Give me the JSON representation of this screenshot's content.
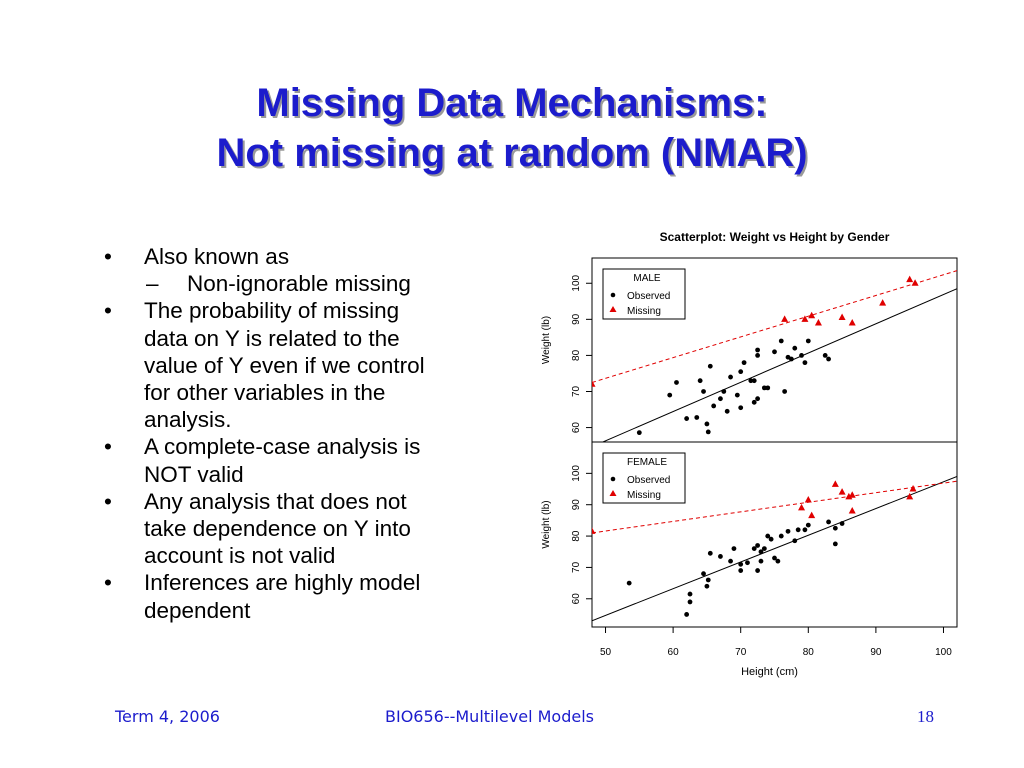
{
  "slide": {
    "title_line1": "Missing Data Mechanisms:",
    "title_line2": "Not missing at random (NMAR)",
    "bullets": [
      {
        "lines": [
          "Also known as"
        ],
        "subs": [
          "Non-ignorable missing"
        ]
      },
      {
        "lines": [
          "The probability of missing",
          "data on Y is related to the",
          "value of Y even if we control",
          "for other variables in the",
          "analysis."
        ],
        "subs": []
      },
      {
        "lines": [
          "A complete-case analysis is",
          "NOT valid"
        ],
        "subs": []
      },
      {
        "lines": [
          "Any analysis that does not",
          "take dependence on Y into",
          "account is not valid"
        ],
        "subs": []
      },
      {
        "lines": [
          "Inferences are highly model",
          "dependent"
        ],
        "subs": []
      }
    ],
    "bullet_marker": "•",
    "sub_marker": "–"
  },
  "footer": {
    "left": "Term 4, 2006",
    "center": "BIO656--Multilevel Models",
    "page": "18"
  },
  "colors": {
    "title": "#1c1ccc",
    "observed": "#000000",
    "missing": "#e00000"
  },
  "chart_data": {
    "type": "scatter",
    "title": "Scatterplot: Weight vs Height by Gender",
    "xlabel": "Height (cm)",
    "xlim": [
      48,
      102
    ],
    "xticks": [
      50,
      60,
      70,
      80,
      90,
      100
    ],
    "panels": [
      {
        "legend_title": "MALE",
        "ylabel": "Weight (lb)",
        "ylim": [
          56,
          107
        ],
        "yticks": [
          60,
          70,
          80,
          90,
          100
        ],
        "observed": [
          [
            55.0,
            58.6
          ],
          [
            59.5,
            69.0
          ],
          [
            60.5,
            72.5
          ],
          [
            62.0,
            62.5
          ],
          [
            63.5,
            62.8
          ],
          [
            64.0,
            73.0
          ],
          [
            64.5,
            70.0
          ],
          [
            65.0,
            61.0
          ],
          [
            65.2,
            58.8
          ],
          [
            65.5,
            77.0
          ],
          [
            66.0,
            66.0
          ],
          [
            67.0,
            68.0
          ],
          [
            67.5,
            70.0
          ],
          [
            68.0,
            64.5
          ],
          [
            68.5,
            74.0
          ],
          [
            69.5,
            69.0
          ],
          [
            70.0,
            65.5
          ],
          [
            70.0,
            75.5
          ],
          [
            70.5,
            78.0
          ],
          [
            71.5,
            73.0
          ],
          [
            72.0,
            73.0
          ],
          [
            72.0,
            67.0
          ],
          [
            72.5,
            68.0
          ],
          [
            72.5,
            80.0
          ],
          [
            72.5,
            81.5
          ],
          [
            73.5,
            71.0
          ],
          [
            74.0,
            71.0
          ],
          [
            75.0,
            81.0
          ],
          [
            76.0,
            84.0
          ],
          [
            76.5,
            70.0
          ],
          [
            77.0,
            79.5
          ],
          [
            77.5,
            79.0
          ],
          [
            78.0,
            82.0
          ],
          [
            79.0,
            80.0
          ],
          [
            79.5,
            78.0
          ],
          [
            80.0,
            84.0
          ],
          [
            82.5,
            80.0
          ],
          [
            83.0,
            79.0
          ]
        ],
        "missing": [
          [
            48.0,
            72.0
          ],
          [
            76.5,
            90.0
          ],
          [
            79.5,
            90.0
          ],
          [
            80.5,
            91.0
          ],
          [
            81.5,
            89.0
          ],
          [
            85.0,
            90.5
          ],
          [
            86.5,
            89.0
          ],
          [
            91.0,
            94.5
          ],
          [
            95.0,
            101.0
          ],
          [
            95.8,
            100.0
          ]
        ],
        "fit_observed": {
          "points": [
            [
              48,
              54.7
            ],
            [
              102,
              98.5
            ]
          ]
        },
        "fit_missing": {
          "points": [
            [
              48,
              72.5
            ],
            [
              102,
              103.5
            ]
          ]
        }
      },
      {
        "legend_title": "FEMALE",
        "ylabel": "Weight (lb)",
        "ylim": [
          51,
          110
        ],
        "yticks": [
          60,
          70,
          80,
          90,
          100
        ],
        "observed": [
          [
            53.5,
            65.0
          ],
          [
            62.0,
            55.0
          ],
          [
            62.5,
            61.5
          ],
          [
            62.5,
            59.0
          ],
          [
            64.5,
            68.0
          ],
          [
            65.0,
            64.0
          ],
          [
            65.2,
            66.0
          ],
          [
            65.5,
            74.5
          ],
          [
            67.0,
            73.5
          ],
          [
            68.5,
            72.0
          ],
          [
            69.0,
            76.0
          ],
          [
            70.0,
            69.0
          ],
          [
            70.0,
            71.0
          ],
          [
            71.0,
            71.5
          ],
          [
            72.0,
            76.0
          ],
          [
            72.5,
            77.0
          ],
          [
            72.5,
            69.0
          ],
          [
            73.0,
            72.0
          ],
          [
            73.0,
            75.0
          ],
          [
            73.5,
            76.0
          ],
          [
            74.0,
            80.0
          ],
          [
            74.5,
            79.0
          ],
          [
            75.0,
            73.0
          ],
          [
            75.5,
            72.0
          ],
          [
            76.0,
            80.0
          ],
          [
            77.0,
            81.5
          ],
          [
            78.0,
            78.5
          ],
          [
            78.5,
            82.0
          ],
          [
            79.5,
            82.0
          ],
          [
            80.0,
            83.5
          ],
          [
            83.0,
            84.5
          ],
          [
            84.0,
            82.5
          ],
          [
            84.0,
            77.5
          ],
          [
            85.0,
            84.0
          ]
        ],
        "missing": [
          [
            48.0,
            81.5
          ],
          [
            79.0,
            89.0
          ],
          [
            80.0,
            91.5
          ],
          [
            80.5,
            86.5
          ],
          [
            84.0,
            96.5
          ],
          [
            85.0,
            94.0
          ],
          [
            86.0,
            92.5
          ],
          [
            86.5,
            93.0
          ],
          [
            86.5,
            88.0
          ],
          [
            95.0,
            92.5
          ],
          [
            95.5,
            95.0
          ]
        ],
        "fit_observed": {
          "points": [
            [
              48,
              53.0
            ],
            [
              102,
              99.0
            ]
          ]
        },
        "fit_missing": {
          "points": [
            [
              48,
              81.0
            ],
            [
              102,
              97.5
            ]
          ]
        }
      }
    ]
  }
}
